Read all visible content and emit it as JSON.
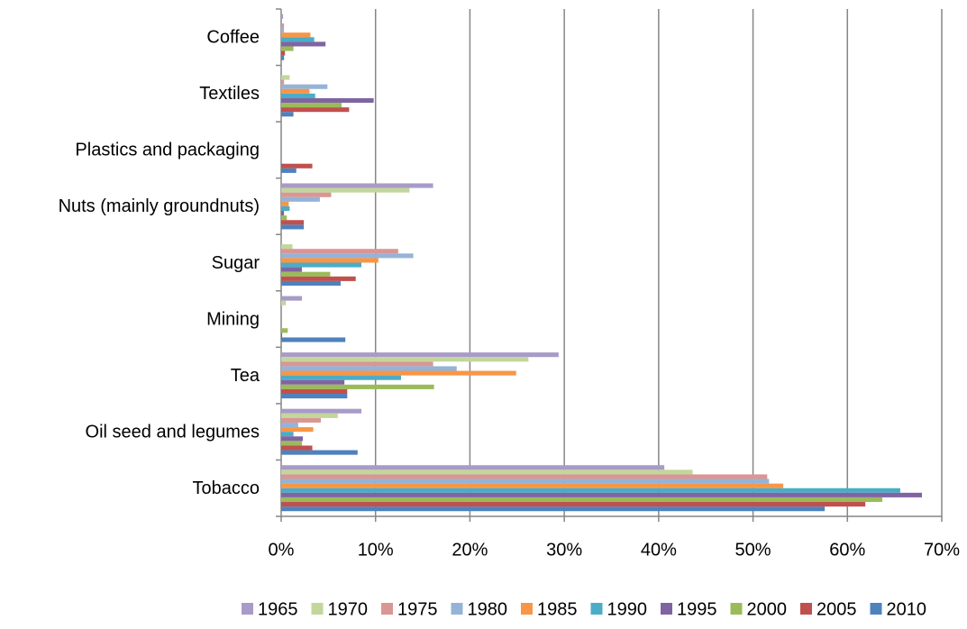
{
  "chart_data": {
    "type": "bar",
    "orientation": "horizontal",
    "categories": [
      "Coffee",
      "Textiles",
      "Plastics and packaging",
      "Nuts (mainly groundnuts)",
      "Sugar",
      "Mining",
      "Tea",
      "Oil seed and legumes",
      "Tobacco"
    ],
    "series": [
      {
        "name": "1965",
        "color": "#a99bc8",
        "values": [
          0.2,
          0,
          0,
          16.1,
          0,
          2.2,
          29.4,
          8.5,
          40.6
        ]
      },
      {
        "name": "1970",
        "color": "#c3d69b",
        "values": [
          0,
          0.9,
          0,
          13.6,
          1.2,
          0.5,
          26.2,
          6.0,
          43.6
        ]
      },
      {
        "name": "1975",
        "color": "#d99694",
        "values": [
          0.3,
          0.3,
          0,
          5.3,
          12.4,
          0,
          16.1,
          4.2,
          51.5
        ]
      },
      {
        "name": "1980",
        "color": "#95b3d7",
        "values": [
          0.3,
          4.9,
          0,
          4.1,
          14.0,
          0,
          18.6,
          1.8,
          51.7
        ]
      },
      {
        "name": "1985",
        "color": "#f79646",
        "values": [
          3.1,
          3.0,
          0,
          0.8,
          10.3,
          0,
          24.9,
          3.4,
          53.2
        ]
      },
      {
        "name": "1990",
        "color": "#4bacc6",
        "values": [
          3.5,
          3.6,
          0,
          0.9,
          8.5,
          0,
          12.7,
          1.3,
          65.6
        ]
      },
      {
        "name": "1995",
        "color": "#8064a2",
        "values": [
          4.7,
          9.8,
          0,
          0.3,
          2.2,
          0,
          6.7,
          2.3,
          67.9
        ]
      },
      {
        "name": "2000",
        "color": "#9bbb59",
        "values": [
          1.3,
          6.4,
          0.1,
          0.6,
          5.2,
          0.7,
          16.2,
          2.2,
          63.7
        ]
      },
      {
        "name": "2005",
        "color": "#c0504d",
        "values": [
          0.4,
          7.2,
          3.3,
          2.4,
          7.9,
          0.1,
          7.0,
          3.3,
          61.9
        ]
      },
      {
        "name": "2010",
        "color": "#4f81bd",
        "values": [
          0.3,
          1.3,
          1.6,
          2.4,
          6.3,
          6.8,
          7.0,
          8.1,
          57.6
        ]
      }
    ],
    "xlim": [
      0,
      70
    ],
    "xticks": [
      {
        "value": 0,
        "label": "0%"
      },
      {
        "value": 10,
        "label": "10%"
      },
      {
        "value": 20,
        "label": "20%"
      },
      {
        "value": 30,
        "label": "30%"
      },
      {
        "value": 40,
        "label": "40%"
      },
      {
        "value": 50,
        "label": "50%"
      },
      {
        "value": 60,
        "label": "60%"
      },
      {
        "value": 70,
        "label": "70%"
      }
    ],
    "grid": true,
    "legend": "bottom"
  }
}
